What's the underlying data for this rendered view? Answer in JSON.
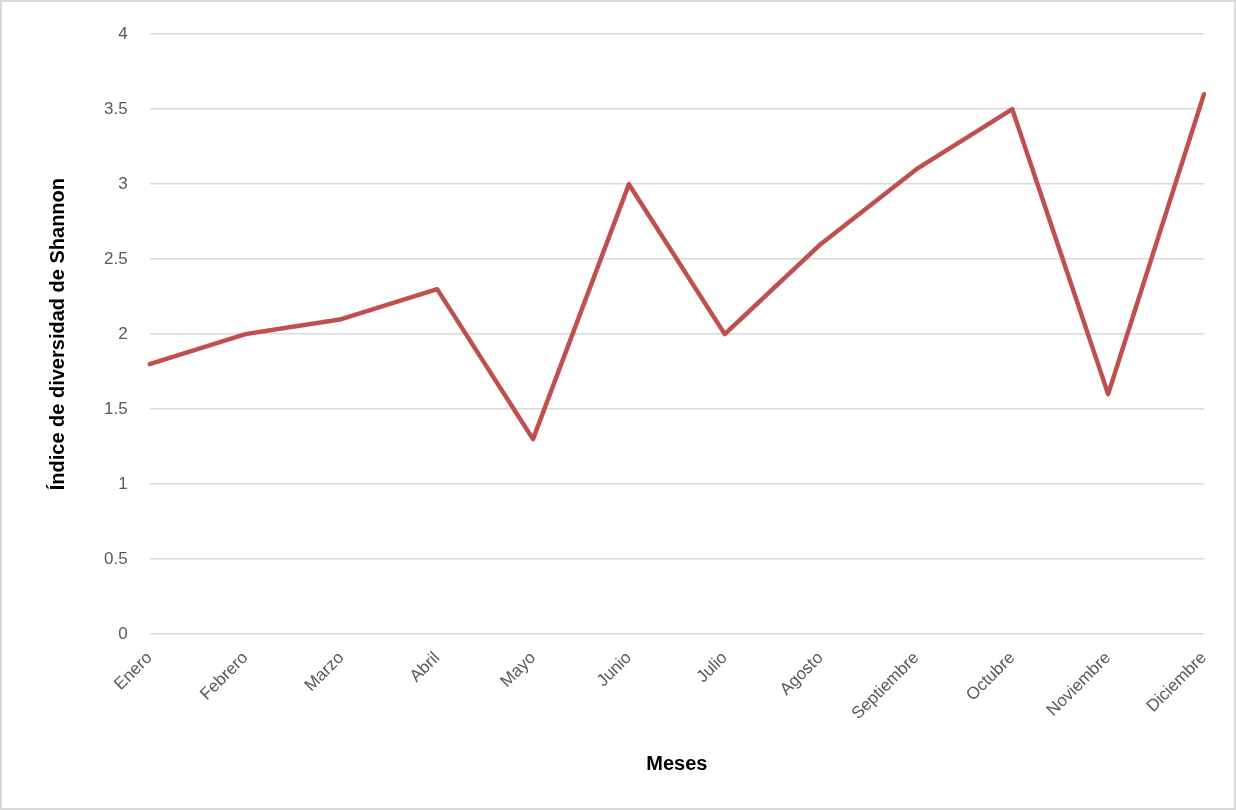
{
  "chart_data": {
    "type": "line",
    "xlabel": "Meses",
    "ylabel": "Índice de diversidad de Shannon",
    "categories": [
      "Enero",
      "Febrero",
      "Marzo",
      "Abril",
      "Mayo",
      "Junio",
      "Julio",
      "Agosto",
      "Septiembre",
      "Octubre",
      "Noviembre",
      "Diciembre"
    ],
    "series": [
      {
        "color": "#c0504d",
        "values": [
          1.8,
          2.0,
          2.1,
          2.3,
          1.3,
          3.0,
          2.0,
          2.6,
          3.1,
          3.5,
          1.6,
          3.6
        ]
      }
    ],
    "ylim": [
      0,
      4
    ],
    "yticks": [
      0,
      0.5,
      1,
      1.5,
      2,
      2.5,
      3,
      3.5,
      4
    ],
    "grid": "y",
    "legend": false,
    "marker": "none",
    "line_style": "solid"
  }
}
